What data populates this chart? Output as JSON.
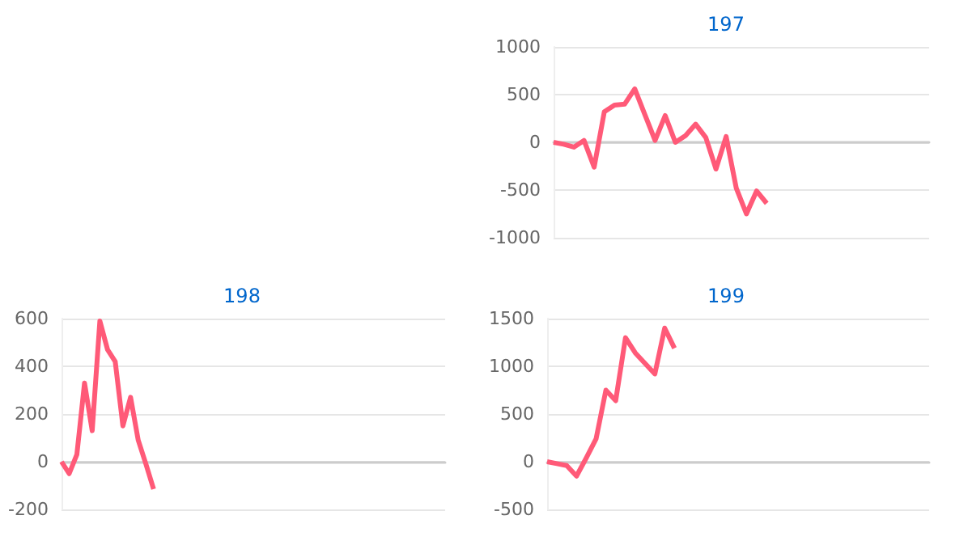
{
  "chart_data": [
    {
      "type": "line",
      "title": "197",
      "categories": [
        null,
        null,
        null,
        null,
        null,
        null,
        null,
        null,
        null,
        null,
        null,
        null,
        null,
        null,
        null,
        null,
        null,
        null,
        null,
        null,
        null,
        null,
        null,
        null,
        null,
        null,
        null,
        null,
        null,
        null,
        null,
        null,
        null,
        null,
        null,
        null,
        null,
        null
      ],
      "series": [
        {
          "color": "#ff5a78",
          "values": [
            0,
            -20,
            -50,
            20,
            -260,
            320,
            390,
            400,
            560,
            290,
            20,
            280,
            0,
            70,
            190,
            50,
            -280,
            60,
            -480,
            -750,
            -510,
            -640,
            null,
            null,
            null,
            null,
            null,
            null,
            null,
            null,
            null,
            null,
            null,
            null,
            null,
            null,
            null,
            null
          ]
        }
      ],
      "ylim": [
        -1000,
        1000
      ],
      "yticks": [
        -1000,
        -500,
        0,
        500,
        1000
      ],
      "grid": "y",
      "tick_labels": "y",
      "line_style": "solid"
    },
    {
      "type": "line",
      "title": "198",
      "categories": [
        null,
        null,
        null,
        null,
        null,
        null,
        null,
        null,
        null,
        null,
        null,
        null,
        null,
        null,
        null,
        null,
        null,
        null,
        null,
        null,
        null,
        null,
        null,
        null,
        null,
        null,
        null,
        null,
        null,
        null,
        null,
        null,
        null,
        null,
        null,
        null,
        null,
        null,
        null,
        null,
        null,
        null,
        null,
        null,
        null,
        null,
        null,
        null,
        null,
        null,
        null
      ],
      "series": [
        {
          "color": "#ff5a78",
          "values": [
            0,
            -50,
            30,
            330,
            130,
            590,
            470,
            420,
            150,
            270,
            90,
            -10,
            -115,
            null,
            null,
            null,
            null,
            null,
            null,
            null,
            null,
            null,
            null,
            null,
            null,
            null,
            null,
            null,
            null,
            null,
            null,
            null,
            null,
            null,
            null,
            null,
            null,
            null,
            null,
            null,
            null,
            null,
            null,
            null,
            null,
            null,
            null,
            null,
            null,
            null,
            null
          ]
        }
      ],
      "ylim": [
        -200,
        600
      ],
      "yticks": [
        -200,
        0,
        200,
        400,
        600
      ],
      "grid": "y",
      "tick_labels": "y",
      "line_style": "solid"
    },
    {
      "type": "line",
      "title": "199",
      "categories": [
        null,
        null,
        null,
        null,
        null,
        null,
        null,
        null,
        null,
        null,
        null,
        null,
        null,
        null,
        null,
        null,
        null,
        null,
        null,
        null,
        null,
        null,
        null,
        null,
        null,
        null,
        null,
        null,
        null,
        null,
        null,
        null,
        null,
        null,
        null,
        null,
        null,
        null,
        null,
        null
      ],
      "series": [
        {
          "color": "#ff5a78",
          "values": [
            0,
            -20,
            -40,
            -150,
            40,
            240,
            750,
            640,
            1300,
            1140,
            1030,
            920,
            1400,
            1190,
            null,
            null,
            null,
            null,
            null,
            null,
            null,
            null,
            null,
            null,
            null,
            null,
            null,
            null,
            null,
            null,
            null,
            null,
            null,
            null,
            null,
            null,
            null,
            null,
            null,
            null
          ]
        }
      ],
      "ylim": [
        -500,
        1500
      ],
      "yticks": [
        -500,
        0,
        500,
        1000,
        1500
      ],
      "grid": "y",
      "tick_labels": "y",
      "line_style": "solid"
    }
  ]
}
